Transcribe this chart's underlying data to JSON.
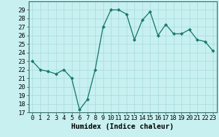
{
  "x": [
    0,
    1,
    2,
    3,
    4,
    5,
    6,
    7,
    8,
    9,
    10,
    11,
    12,
    13,
    14,
    15,
    16,
    17,
    18,
    19,
    20,
    21,
    22,
    23
  ],
  "y": [
    23.0,
    22.0,
    21.8,
    21.5,
    22.0,
    21.0,
    17.3,
    18.5,
    22.0,
    27.0,
    29.0,
    29.0,
    28.5,
    25.5,
    27.8,
    28.8,
    26.0,
    27.3,
    26.2,
    26.2,
    26.7,
    25.5,
    25.3,
    24.2
  ],
  "line_color": "#1a7a6e",
  "marker": "D",
  "marker_size": 2.2,
  "bg_color": "#c8f0f0",
  "grid_color": "#aadddd",
  "xlabel": "Humidex (Indice chaleur)",
  "xlim": [
    -0.5,
    23.5
  ],
  "ylim": [
    17,
    30
  ],
  "yticks": [
    17,
    18,
    19,
    20,
    21,
    22,
    23,
    24,
    25,
    26,
    27,
    28,
    29
  ],
  "xticks": [
    0,
    1,
    2,
    3,
    4,
    5,
    6,
    7,
    8,
    9,
    10,
    11,
    12,
    13,
    14,
    15,
    16,
    17,
    18,
    19,
    20,
    21,
    22,
    23
  ],
  "xtick_labels": [
    "0",
    "1",
    "2",
    "3",
    "4",
    "5",
    "6",
    "7",
    "8",
    "9",
    "10",
    "11",
    "12",
    "13",
    "14",
    "15",
    "16",
    "17",
    "18",
    "19",
    "20",
    "21",
    "22",
    "23"
  ],
  "xlabel_fontsize": 7.5,
  "tick_fontsize": 6.5,
  "line_width": 1.0,
  "spine_color": "#336666"
}
